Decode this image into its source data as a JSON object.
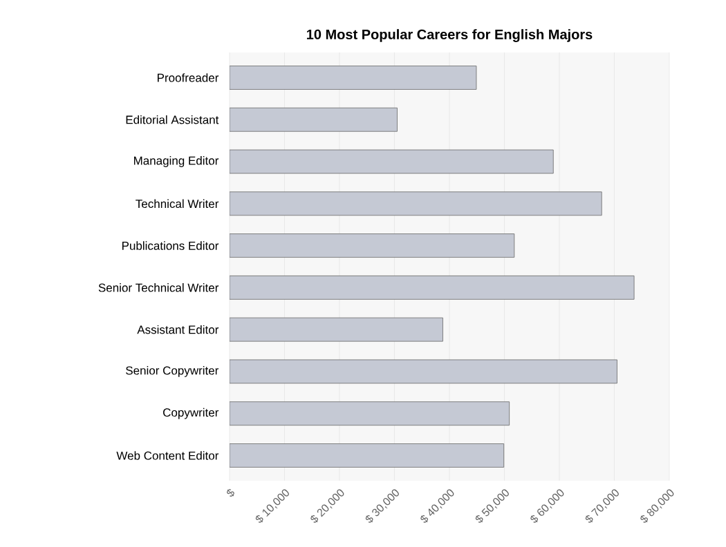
{
  "chart_data": {
    "type": "bar",
    "orientation": "horizontal",
    "title": "10 Most Popular Careers for English Majors",
    "categories": [
      "Proofreader",
      "Editorial Assistant",
      "Managing Editor",
      "Technical Writer",
      "Publications Editor",
      "Senior Technical Writer",
      "Assistant Editor",
      "Senior Copywriter",
      "Copywriter",
      "Web Content Editor"
    ],
    "values": [
      44900,
      30500,
      58900,
      67700,
      51800,
      73600,
      38800,
      70500,
      50900,
      49900
    ],
    "color": "#c5c9d4",
    "xlim": [
      0,
      80000
    ],
    "xticks": [
      {
        "value": 0,
        "label": "$"
      },
      {
        "value": 10000,
        "label": "$ 10,000"
      },
      {
        "value": 20000,
        "label": "$ 20,000"
      },
      {
        "value": 30000,
        "label": "$ 30,000"
      },
      {
        "value": 40000,
        "label": "$ 40,000"
      },
      {
        "value": 50000,
        "label": "$ 50,000"
      },
      {
        "value": 60000,
        "label": "$ 60,000"
      },
      {
        "value": 70000,
        "label": "$ 70,000"
      },
      {
        "value": 80000,
        "label": "$ 80,000"
      }
    ],
    "grid": "x"
  }
}
